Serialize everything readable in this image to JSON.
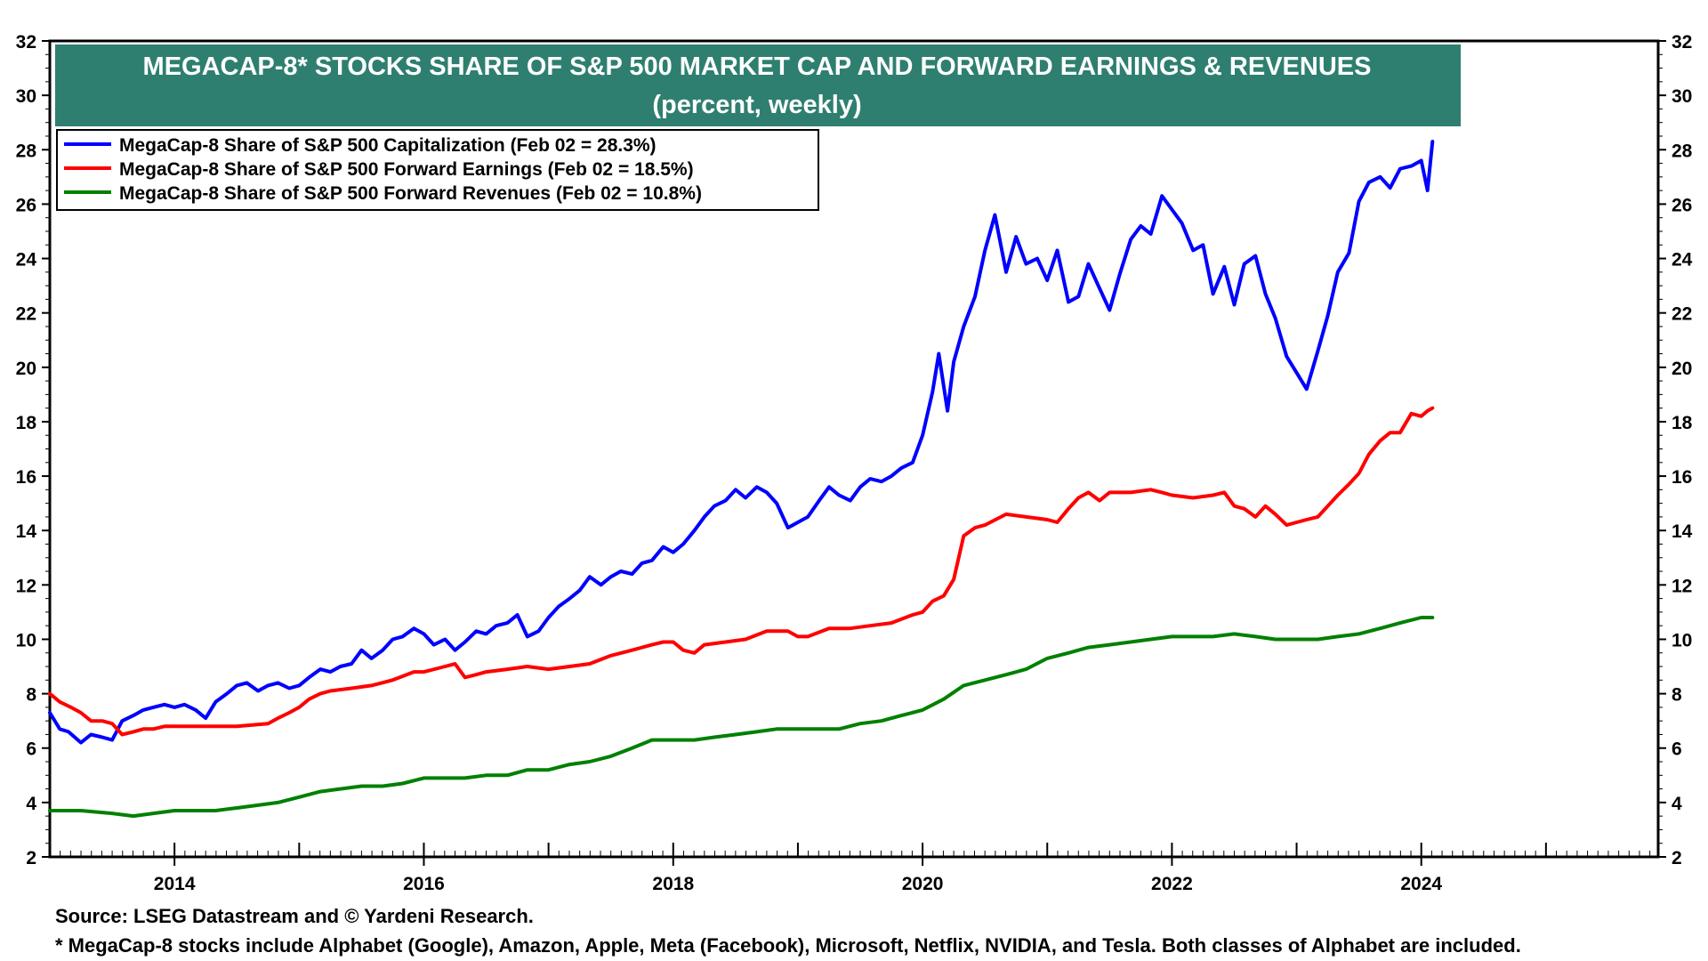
{
  "colors": {
    "title_bg": "#2e7f70",
    "title_text": "#ffffff",
    "capitalization": "#0000ff",
    "forward_earnings": "#ff0000",
    "forward_revenues": "#008000"
  },
  "footnotes": {
    "source": "Source: LSEG Datastream and © Yardeni Research.",
    "note": "* MegaCap-8 stocks include Alphabet (Google), Amazon, Apple, Meta (Facebook), Microsoft, Netflix, NVIDIA, and Tesla. Both classes of Alphabet are included."
  },
  "chart_data": {
    "type": "line",
    "title": "MEGACAP-8* STOCKS SHARE OF S&P 500 MARKET CAP AND FORWARD EARNINGS & REVENUES",
    "subtitle": "(percent, weekly)",
    "xlabel": "",
    "ylabel": "",
    "xlim": [
      2013.0,
      2025.9
    ],
    "ylim": [
      2,
      32
    ],
    "x_ticks": [
      2014,
      2016,
      2018,
      2020,
      2022,
      2024
    ],
    "y_ticks": [
      2,
      4,
      6,
      8,
      10,
      12,
      14,
      16,
      18,
      20,
      22,
      24,
      26,
      28,
      30,
      32
    ],
    "y_axis_both_sides": true,
    "grid": false,
    "legend_position": "top-left",
    "series": [
      {
        "name": "MegaCap-8 Share of S&P 500 Capitalization (Feb 02 = 28.3%)",
        "color_key": "capitalization",
        "x": [
          2013.0,
          2013.08,
          2013.15,
          2013.25,
          2013.33,
          2013.42,
          2013.5,
          2013.58,
          2013.67,
          2013.75,
          2013.83,
          2013.92,
          2014.0,
          2014.08,
          2014.17,
          2014.25,
          2014.33,
          2014.42,
          2014.5,
          2014.58,
          2014.67,
          2014.75,
          2014.83,
          2014.92,
          2015.0,
          2015.08,
          2015.17,
          2015.25,
          2015.33,
          2015.42,
          2015.5,
          2015.58,
          2015.67,
          2015.75,
          2015.83,
          2015.92,
          2016.0,
          2016.08,
          2016.17,
          2016.25,
          2016.33,
          2016.42,
          2016.5,
          2016.58,
          2016.67,
          2016.75,
          2016.83,
          2016.92,
          2017.0,
          2017.08,
          2017.17,
          2017.25,
          2017.33,
          2017.42,
          2017.5,
          2017.58,
          2017.67,
          2017.75,
          2017.83,
          2017.92,
          2018.0,
          2018.08,
          2018.17,
          2018.25,
          2018.33,
          2018.42,
          2018.5,
          2018.58,
          2018.67,
          2018.75,
          2018.83,
          2018.92,
          2019.0,
          2019.08,
          2019.17,
          2019.25,
          2019.33,
          2019.42,
          2019.5,
          2019.58,
          2019.67,
          2019.75,
          2019.83,
          2019.92,
          2020.0,
          2020.08,
          2020.13,
          2020.2,
          2020.25,
          2020.33,
          2020.42,
          2020.5,
          2020.58,
          2020.67,
          2020.75,
          2020.83,
          2020.92,
          2021.0,
          2021.08,
          2021.17,
          2021.25,
          2021.33,
          2021.42,
          2021.5,
          2021.58,
          2021.67,
          2021.75,
          2021.83,
          2021.92,
          2022.0,
          2022.08,
          2022.17,
          2022.25,
          2022.33,
          2022.42,
          2022.5,
          2022.58,
          2022.67,
          2022.75,
          2022.83,
          2022.92,
          2023.0,
          2023.08,
          2023.17,
          2023.25,
          2023.33,
          2023.42,
          2023.5,
          2023.58,
          2023.67,
          2023.75,
          2023.83,
          2023.92,
          2024.0,
          2024.05,
          2024.09
        ],
        "y": [
          7.3,
          6.7,
          6.6,
          6.2,
          6.5,
          6.4,
          6.3,
          7.0,
          7.2,
          7.4,
          7.5,
          7.6,
          7.5,
          7.6,
          7.4,
          7.1,
          7.7,
          8.0,
          8.3,
          8.4,
          8.1,
          8.3,
          8.4,
          8.2,
          8.3,
          8.6,
          8.9,
          8.8,
          9.0,
          9.1,
          9.6,
          9.3,
          9.6,
          10.0,
          10.1,
          10.4,
          10.2,
          9.8,
          10.0,
          9.6,
          9.9,
          10.3,
          10.2,
          10.5,
          10.6,
          10.9,
          10.1,
          10.3,
          10.8,
          11.2,
          11.5,
          11.8,
          12.3,
          12.0,
          12.3,
          12.5,
          12.4,
          12.8,
          12.9,
          13.4,
          13.2,
          13.5,
          14.0,
          14.5,
          14.9,
          15.1,
          15.5,
          15.2,
          15.6,
          15.4,
          15.0,
          14.1,
          14.3,
          14.5,
          15.1,
          15.6,
          15.3,
          15.1,
          15.6,
          15.9,
          15.8,
          16.0,
          16.3,
          16.5,
          17.5,
          19.1,
          20.5,
          18.4,
          20.2,
          21.5,
          22.6,
          24.3,
          25.6,
          23.5,
          24.8,
          23.8,
          24.0,
          23.2,
          24.3,
          22.4,
          22.6,
          23.8,
          22.9,
          22.1,
          23.4,
          24.7,
          25.2,
          24.9,
          26.3,
          25.8,
          25.3,
          24.3,
          24.5,
          22.7,
          23.7,
          22.3,
          23.8,
          24.1,
          22.7,
          21.8,
          20.4,
          19.8,
          19.2,
          20.6,
          21.9,
          23.5,
          24.2,
          26.1,
          26.8,
          27.0,
          26.6,
          27.3,
          27.4,
          27.6,
          26.5,
          28.3
        ]
      },
      {
        "name": "MegaCap-8 Share of S&P 500 Forward Earnings (Feb 02 = 18.5%)",
        "color_key": "forward_earnings",
        "x": [
          2013.0,
          2013.08,
          2013.17,
          2013.25,
          2013.33,
          2013.42,
          2013.5,
          2013.58,
          2013.67,
          2013.75,
          2013.83,
          2013.92,
          2014.0,
          2014.25,
          2014.5,
          2014.75,
          2014.83,
          2014.92,
          2015.0,
          2015.08,
          2015.17,
          2015.25,
          2015.42,
          2015.58,
          2015.75,
          2015.92,
          2016.0,
          2016.17,
          2016.25,
          2016.33,
          2016.42,
          2016.5,
          2016.67,
          2016.83,
          2017.0,
          2017.17,
          2017.33,
          2017.5,
          2017.67,
          2017.83,
          2017.92,
          2018.0,
          2018.08,
          2018.17,
          2018.25,
          2018.42,
          2018.58,
          2018.75,
          2018.92,
          2019.0,
          2019.08,
          2019.25,
          2019.42,
          2019.58,
          2019.75,
          2019.92,
          2020.0,
          2020.08,
          2020.17,
          2020.25,
          2020.33,
          2020.42,
          2020.5,
          2020.67,
          2020.83,
          2021.0,
          2021.08,
          2021.17,
          2021.25,
          2021.33,
          2021.42,
          2021.5,
          2021.67,
          2021.83,
          2021.92,
          2022.0,
          2022.17,
          2022.33,
          2022.42,
          2022.5,
          2022.58,
          2022.67,
          2022.75,
          2022.83,
          2022.92,
          2023.0,
          2023.08,
          2023.17,
          2023.25,
          2023.33,
          2023.42,
          2023.5,
          2023.58,
          2023.67,
          2023.75,
          2023.83,
          2023.92,
          2024.0,
          2024.05,
          2024.09
        ],
        "y": [
          8.0,
          7.7,
          7.5,
          7.3,
          7.0,
          7.0,
          6.9,
          6.5,
          6.6,
          6.7,
          6.7,
          6.8,
          6.8,
          6.8,
          6.8,
          6.9,
          7.1,
          7.3,
          7.5,
          7.8,
          8.0,
          8.1,
          8.2,
          8.3,
          8.5,
          8.8,
          8.8,
          9.0,
          9.1,
          8.6,
          8.7,
          8.8,
          8.9,
          9.0,
          8.9,
          9.0,
          9.1,
          9.4,
          9.6,
          9.8,
          9.9,
          9.9,
          9.6,
          9.5,
          9.8,
          9.9,
          10.0,
          10.3,
          10.3,
          10.1,
          10.1,
          10.4,
          10.4,
          10.5,
          10.6,
          10.9,
          11.0,
          11.4,
          11.6,
          12.2,
          13.8,
          14.1,
          14.2,
          14.6,
          14.5,
          14.4,
          14.3,
          14.8,
          15.2,
          15.4,
          15.1,
          15.4,
          15.4,
          15.5,
          15.4,
          15.3,
          15.2,
          15.3,
          15.4,
          14.9,
          14.8,
          14.5,
          14.9,
          14.6,
          14.2,
          14.3,
          14.4,
          14.5,
          14.9,
          15.3,
          15.7,
          16.1,
          16.8,
          17.3,
          17.6,
          17.6,
          18.3,
          18.2,
          18.4,
          18.5
        ]
      },
      {
        "name": "MegaCap-8 Share of S&P 500 Forward Revenues (Feb 02 = 10.8%)",
        "color_key": "forward_revenues",
        "x": [
          2013.0,
          2013.25,
          2013.5,
          2013.67,
          2013.83,
          2014.0,
          2014.17,
          2014.33,
          2014.5,
          2014.67,
          2014.83,
          2015.0,
          2015.17,
          2015.33,
          2015.5,
          2015.67,
          2015.83,
          2016.0,
          2016.17,
          2016.33,
          2016.5,
          2016.67,
          2016.83,
          2017.0,
          2017.17,
          2017.33,
          2017.5,
          2017.67,
          2017.83,
          2018.0,
          2018.17,
          2018.33,
          2018.5,
          2018.67,
          2018.83,
          2019.0,
          2019.17,
          2019.33,
          2019.5,
          2019.67,
          2019.83,
          2020.0,
          2020.17,
          2020.33,
          2020.5,
          2020.67,
          2020.83,
          2021.0,
          2021.17,
          2021.33,
          2021.5,
          2021.67,
          2021.83,
          2022.0,
          2022.17,
          2022.33,
          2022.5,
          2022.67,
          2022.83,
          2023.0,
          2023.17,
          2023.33,
          2023.5,
          2023.67,
          2023.83,
          2024.0,
          2024.09
        ],
        "y": [
          3.7,
          3.7,
          3.6,
          3.5,
          3.6,
          3.7,
          3.7,
          3.7,
          3.8,
          3.9,
          4.0,
          4.2,
          4.4,
          4.5,
          4.6,
          4.6,
          4.7,
          4.9,
          4.9,
          4.9,
          5.0,
          5.0,
          5.2,
          5.2,
          5.4,
          5.5,
          5.7,
          6.0,
          6.3,
          6.3,
          6.3,
          6.4,
          6.5,
          6.6,
          6.7,
          6.7,
          6.7,
          6.7,
          6.9,
          7.0,
          7.2,
          7.4,
          7.8,
          8.3,
          8.5,
          8.7,
          8.9,
          9.3,
          9.5,
          9.7,
          9.8,
          9.9,
          10.0,
          10.1,
          10.1,
          10.1,
          10.2,
          10.1,
          10.0,
          10.0,
          10.0,
          10.1,
          10.2,
          10.4,
          10.6,
          10.8,
          10.8
        ]
      }
    ]
  }
}
